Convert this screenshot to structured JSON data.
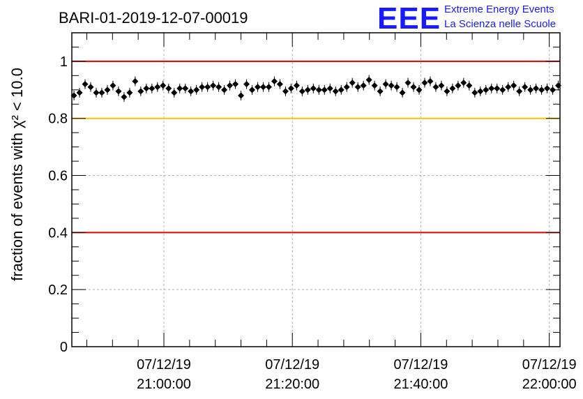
{
  "title": "BARI-01-2019-12-07-00019",
  "logo": {
    "mark": "EEE",
    "line1": "Extreme Energy Events",
    "line2": "La Scienza nelle Scuole"
  },
  "chart_data": {
    "type": "scatter",
    "title": "BARI-01-2019-12-07-00019",
    "ylabel": "fraction of events with χ² < 10.0",
    "xlabel": "",
    "ylim": [
      0,
      1.1
    ],
    "xlim": [
      "2019-12-07 20:45:40",
      "2019-12-07 22:01:40"
    ],
    "grid": true,
    "yticks": [
      {
        "value": 0,
        "label": "0"
      },
      {
        "value": 0.2,
        "label": "0.2"
      },
      {
        "value": 0.4,
        "label": "0.4"
      },
      {
        "value": 0.6,
        "label": "0.6"
      },
      {
        "value": 0.8,
        "label": "0.8"
      },
      {
        "value": 1,
        "label": "1"
      }
    ],
    "xticks": [
      {
        "value": "2019-12-07 21:00:00",
        "line1": "07/12/19",
        "line2": "21:00:00"
      },
      {
        "value": "2019-12-07 21:20:00",
        "line1": "07/12/19",
        "line2": "21:20:00"
      },
      {
        "value": "2019-12-07 21:40:00",
        "line1": "07/12/19",
        "line2": "21:40:00"
      },
      {
        "value": "2019-12-07 22:00:00",
        "line1": "07/12/19",
        "line2": "22:00:00"
      }
    ],
    "reference_lines": [
      {
        "y": 1.0,
        "color": "#e00000"
      },
      {
        "y": 0.8,
        "color": "#ffc000"
      },
      {
        "y": 0.4,
        "color": "#e00000"
      }
    ],
    "marker_color": "#000000",
    "x": [
      "2019-12-07 20:46:00",
      "2019-12-07 20:46:52",
      "2019-12-07 20:47:44",
      "2019-12-07 20:48:36",
      "2019-12-07 20:49:28",
      "2019-12-07 20:50:20",
      "2019-12-07 20:51:12",
      "2019-12-07 20:52:04",
      "2019-12-07 20:52:56",
      "2019-12-07 20:53:48",
      "2019-12-07 20:54:40",
      "2019-12-07 20:55:32",
      "2019-12-07 20:56:24",
      "2019-12-07 20:57:16",
      "2019-12-07 20:58:08",
      "2019-12-07 20:59:00",
      "2019-12-07 20:59:52",
      "2019-12-07 21:00:44",
      "2019-12-07 21:01:36",
      "2019-12-07 21:02:28",
      "2019-12-07 21:03:20",
      "2019-12-07 21:04:12",
      "2019-12-07 21:05:04",
      "2019-12-07 21:05:56",
      "2019-12-07 21:06:48",
      "2019-12-07 21:07:40",
      "2019-12-07 21:08:32",
      "2019-12-07 21:09:24",
      "2019-12-07 21:10:16",
      "2019-12-07 21:11:08",
      "2019-12-07 21:12:00",
      "2019-12-07 21:12:52",
      "2019-12-07 21:13:44",
      "2019-12-07 21:14:36",
      "2019-12-07 21:15:28",
      "2019-12-07 21:16:20",
      "2019-12-07 21:17:12",
      "2019-12-07 21:18:04",
      "2019-12-07 21:18:56",
      "2019-12-07 21:19:48",
      "2019-12-07 21:20:40",
      "2019-12-07 21:21:32",
      "2019-12-07 21:22:24",
      "2019-12-07 21:23:16",
      "2019-12-07 21:24:08",
      "2019-12-07 21:25:00",
      "2019-12-07 21:25:52",
      "2019-12-07 21:26:44",
      "2019-12-07 21:27:36",
      "2019-12-07 21:28:28",
      "2019-12-07 21:29:20",
      "2019-12-07 21:30:12",
      "2019-12-07 21:31:04",
      "2019-12-07 21:31:56",
      "2019-12-07 21:32:48",
      "2019-12-07 21:33:40",
      "2019-12-07 21:34:32",
      "2019-12-07 21:35:24",
      "2019-12-07 21:36:16",
      "2019-12-07 21:37:08",
      "2019-12-07 21:38:00",
      "2019-12-07 21:38:52",
      "2019-12-07 21:39:44",
      "2019-12-07 21:40:36",
      "2019-12-07 21:41:28",
      "2019-12-07 21:42:20",
      "2019-12-07 21:43:12",
      "2019-12-07 21:44:04",
      "2019-12-07 21:44:56",
      "2019-12-07 21:45:48",
      "2019-12-07 21:46:40",
      "2019-12-07 21:47:32",
      "2019-12-07 21:48:24",
      "2019-12-07 21:49:16",
      "2019-12-07 21:50:08",
      "2019-12-07 21:51:00",
      "2019-12-07 21:51:52",
      "2019-12-07 21:52:44",
      "2019-12-07 21:53:36",
      "2019-12-07 21:54:28",
      "2019-12-07 21:55:20",
      "2019-12-07 21:56:12",
      "2019-12-07 21:57:04",
      "2019-12-07 21:57:56",
      "2019-12-07 21:58:48",
      "2019-12-07 21:59:40",
      "2019-12-07 22:00:32",
      "2019-12-07 22:01:24"
    ],
    "y": [
      0.88,
      0.89,
      0.92,
      0.91,
      0.89,
      0.89,
      0.9,
      0.915,
      0.895,
      0.875,
      0.89,
      0.93,
      0.895,
      0.905,
      0.905,
      0.91,
      0.915,
      0.905,
      0.89,
      0.905,
      0.905,
      0.895,
      0.9,
      0.91,
      0.91,
      0.915,
      0.91,
      0.9,
      0.915,
      0.92,
      0.88,
      0.92,
      0.9,
      0.91,
      0.91,
      0.91,
      0.93,
      0.92,
      0.895,
      0.905,
      0.915,
      0.895,
      0.9,
      0.905,
      0.9,
      0.9,
      0.905,
      0.895,
      0.9,
      0.91,
      0.925,
      0.91,
      0.915,
      0.935,
      0.915,
      0.895,
      0.92,
      0.915,
      0.91,
      0.89,
      0.925,
      0.91,
      0.9,
      0.925,
      0.93,
      0.91,
      0.915,
      0.895,
      0.905,
      0.915,
      0.925,
      0.915,
      0.89,
      0.895,
      0.9,
      0.905,
      0.905,
      0.9,
      0.91,
      0.915,
      0.895,
      0.91,
      0.9,
      0.905,
      0.9,
      0.905,
      0.9,
      0.915
    ]
  }
}
